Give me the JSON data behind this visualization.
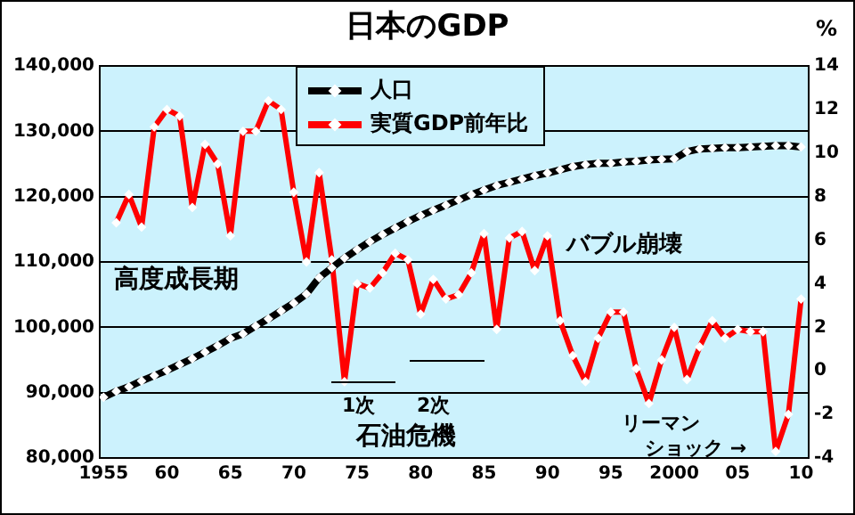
{
  "chart_data": {
    "type": "line",
    "title": "日本のGDP",
    "y2label": "%",
    "x": [
      1955,
      1956,
      1957,
      1958,
      1959,
      1960,
      1961,
      1962,
      1963,
      1964,
      1965,
      1966,
      1967,
      1968,
      1969,
      1970,
      1971,
      1972,
      1973,
      1974,
      1975,
      1976,
      1977,
      1978,
      1979,
      1980,
      1981,
      1982,
      1983,
      1984,
      1985,
      1986,
      1987,
      1988,
      1989,
      1990,
      1991,
      1992,
      1993,
      1994,
      1995,
      1996,
      1997,
      1998,
      1999,
      2000,
      2001,
      2002,
      2003,
      2004,
      2005,
      2006,
      2007,
      2008,
      2009,
      2010
    ],
    "series": [
      {
        "name": "人口",
        "color": "#000000",
        "values": [
          89300,
          90200,
          90900,
          91800,
          92600,
          93400,
          94300,
          95200,
          96200,
          97200,
          98300,
          99000,
          100200,
          101300,
          102500,
          103700,
          105100,
          107600,
          109100,
          110600,
          111900,
          113100,
          114200,
          115200,
          116200,
          117100,
          117900,
          118700,
          119500,
          120300,
          121000,
          121700,
          122200,
          122700,
          123200,
          123600,
          124100,
          124600,
          124900,
          125100,
          125100,
          125300,
          125400,
          125600,
          125700,
          125800,
          126900,
          127300,
          127400,
          127500,
          127500,
          127600,
          127700,
          127800,
          127800,
          127600
        ]
      },
      {
        "name": "実質GDP前年比",
        "color": "#ff0000",
        "axis": "y2",
        "x": [
          1956,
          1957,
          1958,
          1959,
          1960,
          1961,
          1962,
          1963,
          1964,
          1965,
          1966,
          1967,
          1968,
          1969,
          1970,
          1971,
          1972,
          1973,
          1974,
          1975,
          1976,
          1977,
          1978,
          1979,
          1980,
          1981,
          1982,
          1983,
          1984,
          1985,
          1986,
          1987,
          1988,
          1989,
          1990,
          1991,
          1992,
          1993,
          1994,
          1995,
          1996,
          1997,
          1998,
          1999,
          2000,
          2001,
          2002,
          2003,
          2004,
          2005,
          2006,
          2007,
          2008,
          2009,
          2010
        ],
        "values": [
          6.8,
          8.1,
          6.6,
          11.2,
          12.0,
          11.7,
          7.5,
          10.4,
          9.5,
          6.2,
          11.0,
          11.0,
          12.4,
          12.0,
          8.2,
          5.0,
          9.1,
          5.1,
          -0.5,
          4.0,
          3.8,
          4.5,
          5.4,
          5.1,
          2.6,
          4.2,
          3.3,
          3.5,
          4.5,
          6.3,
          1.9,
          6.1,
          6.4,
          4.6,
          6.2,
          2.3,
          0.7,
          -0.5,
          1.5,
          2.7,
          2.7,
          0.1,
          -1.5,
          0.5,
          2.0,
          -0.4,
          1.1,
          2.3,
          1.5,
          1.9,
          1.8,
          1.8,
          -3.7,
          -2.0,
          3.3
        ]
      }
    ],
    "xlim": [
      1954.7,
      2010.6
    ],
    "xticks": [
      1955,
      {
        "value": 1960,
        "label": "60"
      },
      {
        "value": 1965,
        "label": "65"
      },
      {
        "value": 1970,
        "label": "70"
      },
      {
        "value": 1975,
        "label": "75"
      },
      {
        "value": 1980,
        "label": "80"
      },
      {
        "value": 1985,
        "label": "85"
      },
      {
        "value": 1990,
        "label": "90"
      },
      {
        "value": 1995,
        "label": "95"
      },
      2000,
      {
        "value": 2005,
        "label": "05"
      },
      {
        "value": 2010,
        "label": "10"
      }
    ],
    "ylim": [
      80000,
      140000
    ],
    "yticks": [
      {
        "value": 80000,
        "label": "80,000"
      },
      {
        "value": 90000,
        "label": "90,000"
      },
      {
        "value": 100000,
        "label": "100,000"
      },
      {
        "value": 110000,
        "label": "110,000"
      },
      {
        "value": 120000,
        "label": "120,000"
      },
      {
        "value": 130000,
        "label": "130,000"
      },
      {
        "value": 140000,
        "label": "140,000"
      }
    ],
    "y2lim": [
      -4,
      14
    ],
    "y2ticks": [
      -4,
      -2,
      0,
      2,
      4,
      6,
      8,
      10,
      12,
      14
    ],
    "grid": "y",
    "legend": "top",
    "marker": "diamond",
    "line_style": "solid",
    "annotations": [
      "高度成長期",
      "1次",
      "2次",
      "石油危機",
      "バブル崩壊",
      "リーマン",
      "ショック →"
    ]
  }
}
